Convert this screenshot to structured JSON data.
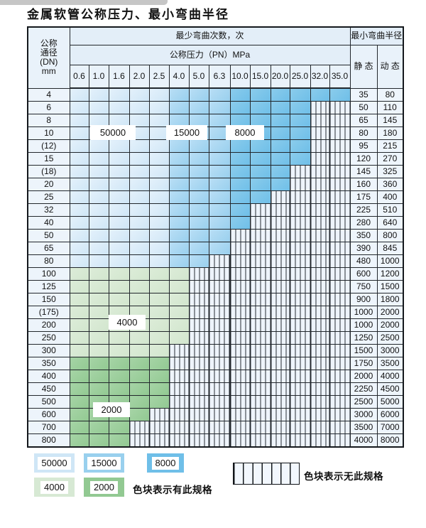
{
  "page": {
    "title": "金属软管公称压力、最小弯曲半径"
  },
  "table": {
    "header": {
      "dn_lines": [
        "公称",
        "通径",
        "(DN)",
        "mm"
      ],
      "cycles_label": "最少弯曲次数，次",
      "pressure_label": "公称压力（PN）MPa",
      "radius_label": "最小弯曲半径",
      "static_label": "静 态",
      "dynamic_label": "动 态",
      "pressure_columns": [
        "0.6",
        "1.0",
        "1.6",
        "2.0",
        "2.5",
        "4.0",
        "5.0",
        "6.3",
        "10.0",
        "15.0",
        "20.0",
        "25.0",
        "32.0",
        "35.0"
      ]
    },
    "rows": [
      {
        "dn": "4",
        "colored_columns": 14,
        "tier": "blue",
        "static": "35",
        "dynamic": "80"
      },
      {
        "dn": "6",
        "colored_columns": 12,
        "tier": "blue",
        "static": "50",
        "dynamic": "110"
      },
      {
        "dn": "8",
        "colored_columns": 12,
        "tier": "blue",
        "static": "65",
        "dynamic": "145"
      },
      {
        "dn": "10",
        "colored_columns": 12,
        "tier": "blue",
        "static": "80",
        "dynamic": "180"
      },
      {
        "dn": "(12)",
        "colored_columns": 12,
        "tier": "blue",
        "static": "95",
        "dynamic": "215"
      },
      {
        "dn": "15",
        "colored_columns": 12,
        "tier": "blue",
        "static": "120",
        "dynamic": "270"
      },
      {
        "dn": "(18)",
        "colored_columns": 11,
        "tier": "blue",
        "static": "145",
        "dynamic": "325"
      },
      {
        "dn": "20",
        "colored_columns": 11,
        "tier": "blue",
        "static": "160",
        "dynamic": "360"
      },
      {
        "dn": "25",
        "colored_columns": 10,
        "tier": "blue",
        "static": "175",
        "dynamic": "400"
      },
      {
        "dn": "32",
        "colored_columns": 9,
        "tier": "blue",
        "static": "225",
        "dynamic": "510"
      },
      {
        "dn": "40",
        "colored_columns": 9,
        "tier": "blue",
        "static": "280",
        "dynamic": "640"
      },
      {
        "dn": "50",
        "colored_columns": 8,
        "tier": "blue",
        "static": "350",
        "dynamic": "800"
      },
      {
        "dn": "65",
        "colored_columns": 8,
        "tier": "blue",
        "static": "390",
        "dynamic": "845"
      },
      {
        "dn": "80",
        "colored_columns": 7,
        "tier": "blue",
        "static": "480",
        "dynamic": "1000"
      },
      {
        "dn": "100",
        "colored_columns": 6,
        "tier": "green-4000",
        "static": "600",
        "dynamic": "1200"
      },
      {
        "dn": "125",
        "colored_columns": 6,
        "tier": "green-4000",
        "static": "750",
        "dynamic": "1500"
      },
      {
        "dn": "150",
        "colored_columns": 6,
        "tier": "green-4000",
        "static": "900",
        "dynamic": "1800"
      },
      {
        "dn": "(175)",
        "colored_columns": 6,
        "tier": "green-4000",
        "static": "1000",
        "dynamic": "2000"
      },
      {
        "dn": "200",
        "colored_columns": 6,
        "tier": "green-4000",
        "static": "1000",
        "dynamic": "2000"
      },
      {
        "dn": "250",
        "colored_columns": 6,
        "tier": "green-4000",
        "static": "1250",
        "dynamic": "2500"
      },
      {
        "dn": "300",
        "colored_columns": 5,
        "tier": "green-4000",
        "static": "1500",
        "dynamic": "3000"
      },
      {
        "dn": "350",
        "colored_columns": 5,
        "tier": "green-2000",
        "static": "1750",
        "dynamic": "3500"
      },
      {
        "dn": "400",
        "colored_columns": 5,
        "tier": "green-2000",
        "static": "2000",
        "dynamic": "4000"
      },
      {
        "dn": "450",
        "colored_columns": 5,
        "tier": "green-2000",
        "static": "2250",
        "dynamic": "4500"
      },
      {
        "dn": "500",
        "colored_columns": 5,
        "tier": "green-2000",
        "static": "2500",
        "dynamic": "5000"
      },
      {
        "dn": "600",
        "colored_columns": 4,
        "tier": "green-2000",
        "static": "3000",
        "dynamic": "6000"
      },
      {
        "dn": "700",
        "colored_columns": 3,
        "tier": "green-2000",
        "static": "3500",
        "dynamic": "7000"
      },
      {
        "dn": "800",
        "colored_columns": 3,
        "tier": "green-2000",
        "static": "4000",
        "dynamic": "8000"
      }
    ],
    "region_labels": [
      {
        "id": "rl-50000",
        "text": "50000"
      },
      {
        "id": "rl-15000",
        "text": "15000"
      },
      {
        "id": "rl-8000",
        "text": "8000"
      },
      {
        "id": "rl-4000",
        "text": "4000"
      },
      {
        "id": "rl-2000",
        "text": "2000"
      }
    ]
  },
  "legend": {
    "items": [
      {
        "value": "50000",
        "tier": "blue-50000"
      },
      {
        "value": "15000",
        "tier": "blue-15000"
      },
      {
        "value": "8000",
        "tier": "blue-8000"
      },
      {
        "value": "4000",
        "tier": "green-4000"
      },
      {
        "value": "2000",
        "tier": "green-2000"
      }
    ],
    "has_spec_note": "色块表示有此规格",
    "no_spec_note": "色块表示无此规格"
  },
  "colors": {
    "blue_50000": "#cfe6f6",
    "blue_15000": "#99d0ee",
    "blue_8000": "#6fbfe8",
    "green_4000": "#d7e9d4",
    "green_2000": "#92c992",
    "hatch_bg": "#eef4fb",
    "grid_line": "#22272c"
  }
}
